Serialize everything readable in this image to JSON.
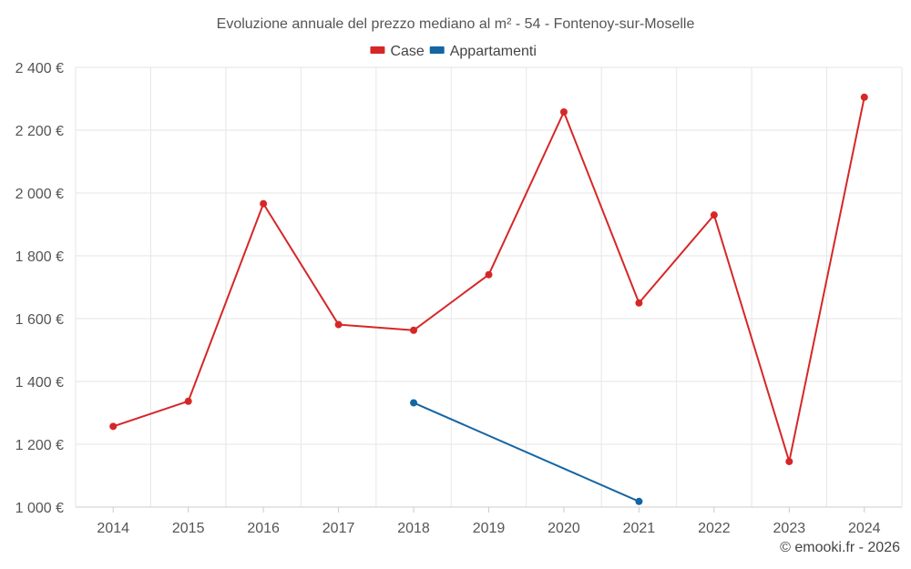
{
  "chart_data": {
    "type": "line",
    "title": "Evoluzione annuale del prezzo mediano al m² - 54 - Fontenoy-sur-Moselle",
    "categories": [
      "2014",
      "2015",
      "2016",
      "2017",
      "2018",
      "2019",
      "2020",
      "2021",
      "2022",
      "2023",
      "2024"
    ],
    "series": [
      {
        "name": "Case",
        "color": "#d62728",
        "values": [
          1257,
          1337,
          1966,
          1581,
          1563,
          1740,
          2258,
          1650,
          1930,
          1145,
          2305
        ]
      },
      {
        "name": "Appartamenti",
        "color": "#1565a3",
        "values": [
          null,
          null,
          null,
          null,
          1332,
          null,
          null,
          1018,
          null,
          null,
          null
        ]
      }
    ],
    "ylim": [
      1000,
      2400
    ],
    "yticks": [
      1000,
      1200,
      1400,
      1600,
      1800,
      2000,
      2200,
      2400
    ],
    "ytick_labels": [
      "1 000 €",
      "1 200 €",
      "1 400 €",
      "1 600 €",
      "1 800 €",
      "2 000 €",
      "2 200 €",
      "2 400 €"
    ],
    "grid": true,
    "legend_position": "top-center"
  },
  "credit": "© emooki.fr - 2026"
}
